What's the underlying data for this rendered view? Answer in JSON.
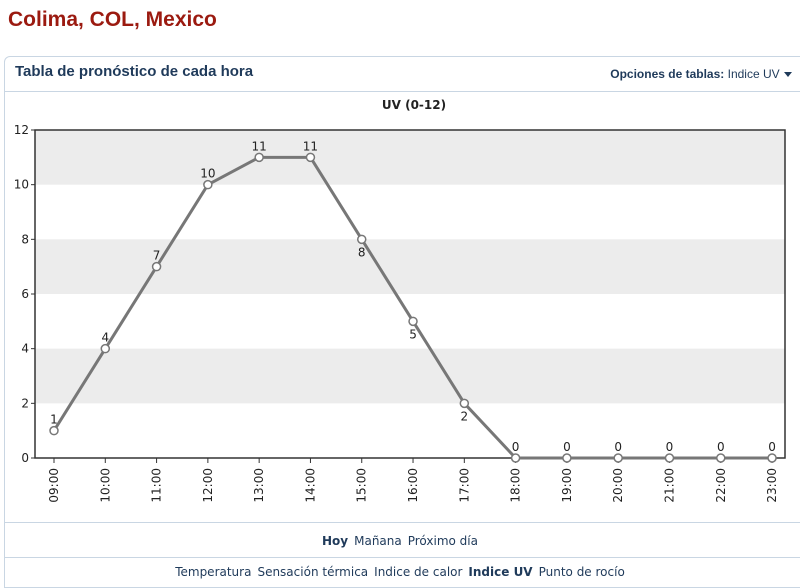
{
  "header": {
    "title": "Colima, COL, Mexico"
  },
  "panel": {
    "title": "Tabla de pronóstico de cada hora",
    "options_label": "Opciones de tablas:",
    "options_value": "Indice UV"
  },
  "chart_data": {
    "type": "line",
    "title": "UV (0-12)",
    "categories": [
      "09:00",
      "10:00",
      "11:00",
      "12:00",
      "13:00",
      "14:00",
      "15:00",
      "16:00",
      "17:00",
      "18:00",
      "19:00",
      "20:00",
      "21:00",
      "22:00",
      "23:00"
    ],
    "series": [
      {
        "name": "UV",
        "color": "#777777",
        "values": [
          1,
          4,
          7,
          10,
          11,
          11,
          8,
          5,
          2,
          0,
          0,
          0,
          0,
          0,
          0
        ]
      }
    ],
    "ylim": [
      0,
      12
    ],
    "yticks": [
      0,
      2,
      4,
      6,
      8,
      10,
      12
    ],
    "grid": true
  },
  "day_tabs": [
    "Hoy",
    "Mañana",
    "Próximo día"
  ],
  "chart_links": [
    "Temperatura",
    "Sensación térmica",
    "Indice de calor",
    "Indice UV",
    "Punto de rocío"
  ]
}
